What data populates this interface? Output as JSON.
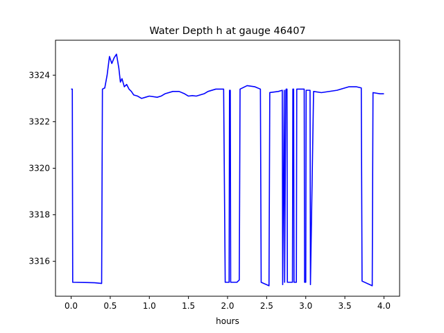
{
  "chart_data": {
    "type": "line",
    "title": "Water Depth h at gauge 46407",
    "xlabel": "hours",
    "ylabel": "",
    "xlim": [
      -0.2,
      4.2
    ],
    "ylim": [
      3314.5,
      3325.5
    ],
    "xticks": [
      0.0,
      0.5,
      1.0,
      1.5,
      2.0,
      2.5,
      3.0,
      3.5,
      4.0
    ],
    "xtick_labels": [
      "0.0",
      "0.5",
      "1.0",
      "1.5",
      "2.0",
      "2.5",
      "3.0",
      "3.5",
      "4.0"
    ],
    "yticks": [
      3316,
      3318,
      3320,
      3322,
      3324
    ],
    "ytick_labels": [
      "3316",
      "3318",
      "3320",
      "3322",
      "3324"
    ],
    "grid": false,
    "legend": "none",
    "series": [
      {
        "color": "#0000ff",
        "x": [
          0.0,
          0.015,
          0.02,
          0.3,
          0.39,
          0.4,
          0.43,
          0.46,
          0.49,
          0.52,
          0.55,
          0.58,
          0.61,
          0.63,
          0.65,
          0.68,
          0.71,
          0.74,
          0.77,
          0.8,
          0.85,
          0.9,
          0.95,
          1.0,
          1.1,
          1.15,
          1.2,
          1.3,
          1.38,
          1.45,
          1.5,
          1.55,
          1.6,
          1.7,
          1.75,
          1.85,
          1.95,
          1.97,
          1.975,
          2.02,
          2.025,
          2.035,
          2.04,
          2.12,
          2.15,
          2.16,
          2.25,
          2.35,
          2.42,
          2.43,
          2.53,
          2.54,
          2.65,
          2.7,
          2.705,
          2.725,
          2.73,
          2.745,
          2.75,
          2.76,
          2.765,
          2.83,
          2.835,
          2.845,
          2.85,
          2.88,
          2.885,
          2.98,
          2.985,
          3.0,
          3.005,
          3.055,
          3.06,
          3.1,
          3.2,
          3.4,
          3.55,
          3.65,
          3.71,
          3.72,
          3.85,
          3.86,
          3.95,
          4.0
        ],
        "y": [
          3323.4,
          3323.4,
          3315.1,
          3315.08,
          3315.05,
          3323.4,
          3323.45,
          3324.0,
          3324.8,
          3324.5,
          3324.75,
          3324.9,
          3324.3,
          3323.7,
          3323.85,
          3323.5,
          3323.6,
          3323.4,
          3323.3,
          3323.15,
          3323.1,
          3323.0,
          3323.05,
          3323.1,
          3323.05,
          3323.1,
          3323.2,
          3323.3,
          3323.3,
          3323.2,
          3323.1,
          3323.12,
          3323.1,
          3323.2,
          3323.3,
          3323.4,
          3323.4,
          3315.1,
          3315.1,
          3315.1,
          3323.35,
          3323.35,
          3315.1,
          3315.1,
          3315.2,
          3323.4,
          3323.55,
          3323.5,
          3323.4,
          3315.1,
          3314.95,
          3323.25,
          3323.3,
          3323.35,
          3315.0,
          3323.35,
          3315.1,
          3323.35,
          3323.4,
          3323.4,
          3315.1,
          3315.1,
          3323.4,
          3323.4,
          3315.1,
          3315.1,
          3323.4,
          3323.4,
          3315.1,
          3315.1,
          3323.35,
          3323.35,
          3315.0,
          3323.3,
          3323.25,
          3323.35,
          3323.5,
          3323.5,
          3323.45,
          3315.15,
          3314.95,
          3323.25,
          3323.2,
          3323.2
        ]
      }
    ]
  }
}
